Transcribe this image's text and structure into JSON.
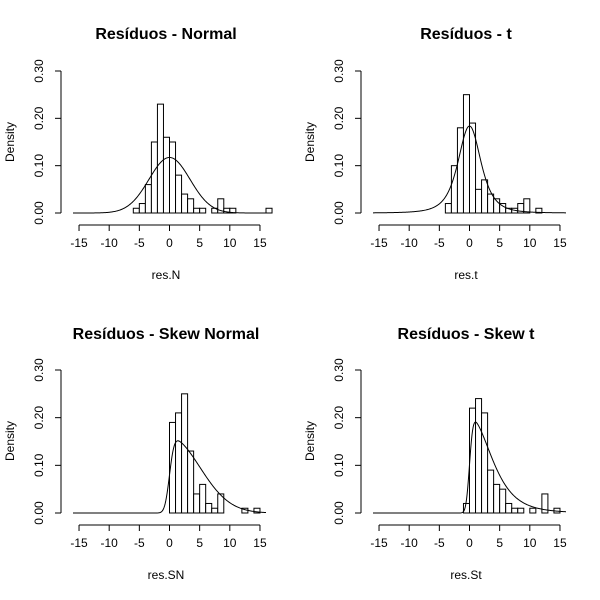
{
  "chart_data": [
    {
      "type": "histogram",
      "title": "Resíduos - Normal",
      "xlabel": "res.N",
      "ylabel": "Density",
      "xlim": [
        -16,
        16
      ],
      "ylim": [
        0,
        0.3
      ],
      "xticks": [
        -15,
        -10,
        -5,
        0,
        5,
        10,
        15
      ],
      "yticks": [
        0.0,
        0.1,
        0.2,
        0.3
      ],
      "ytick_labels": [
        "0.00",
        "0.10",
        "0.20",
        "0.30"
      ],
      "bin_width": 1,
      "bins": [
        {
          "x0": -6,
          "density": 0.01
        },
        {
          "x0": -5,
          "density": 0.02
        },
        {
          "x0": -4,
          "density": 0.06
        },
        {
          "x0": -3,
          "density": 0.15
        },
        {
          "x0": -2,
          "density": 0.23
        },
        {
          "x0": -1,
          "density": 0.16
        },
        {
          "x0": 0,
          "density": 0.15
        },
        {
          "x0": 1,
          "density": 0.08
        },
        {
          "x0": 2,
          "density": 0.04
        },
        {
          "x0": 3,
          "density": 0.03
        },
        {
          "x0": 4,
          "density": 0.01
        },
        {
          "x0": 5,
          "density": 0.01
        },
        {
          "x0": 6,
          "density": 0.0
        },
        {
          "x0": 7,
          "density": 0.01
        },
        {
          "x0": 8,
          "density": 0.03
        },
        {
          "x0": 9,
          "density": 0.01
        },
        {
          "x0": 10,
          "density": 0.01
        },
        {
          "x0": 16,
          "density": 0.01
        }
      ],
      "curve": {
        "dist": "normal",
        "mu": 0.0,
        "sigma": 3.4
      }
    },
    {
      "type": "histogram",
      "title": "Resíduos - t",
      "xlabel": "res.t",
      "ylabel": "Density",
      "xlim": [
        -16,
        16
      ],
      "ylim": [
        0,
        0.3
      ],
      "xticks": [
        -15,
        -10,
        -5,
        0,
        5,
        10,
        15
      ],
      "yticks": [
        0.0,
        0.1,
        0.2,
        0.3
      ],
      "ytick_labels": [
        "0.00",
        "0.10",
        "0.20",
        "0.30"
      ],
      "bin_width": 1,
      "bins": [
        {
          "x0": -4,
          "density": 0.02
        },
        {
          "x0": -3,
          "density": 0.1
        },
        {
          "x0": -2,
          "density": 0.18
        },
        {
          "x0": -1,
          "density": 0.25
        },
        {
          "x0": 0,
          "density": 0.19
        },
        {
          "x0": 1,
          "density": 0.05
        },
        {
          "x0": 2,
          "density": 0.07
        },
        {
          "x0": 3,
          "density": 0.04
        },
        {
          "x0": 4,
          "density": 0.03
        },
        {
          "x0": 5,
          "density": 0.02
        },
        {
          "x0": 6,
          "density": 0.01
        },
        {
          "x0": 7,
          "density": 0.01
        },
        {
          "x0": 8,
          "density": 0.02
        },
        {
          "x0": 9,
          "density": 0.03
        },
        {
          "x0": 10,
          "density": 0.0
        },
        {
          "x0": 11,
          "density": 0.01
        }
      ],
      "curve": {
        "dist": "t",
        "mu": 0.0,
        "sigma": 2.0,
        "nu": 3
      }
    },
    {
      "type": "histogram",
      "title": "Resíduos - Skew Normal",
      "xlabel": "res.SN",
      "ylabel": "Density",
      "xlim": [
        -16,
        16
      ],
      "ylim": [
        0,
        0.3
      ],
      "xticks": [
        -15,
        -10,
        -5,
        0,
        5,
        10,
        15
      ],
      "yticks": [
        0.0,
        0.1,
        0.2,
        0.3
      ],
      "ytick_labels": [
        "0.00",
        "0.10",
        "0.20",
        "0.30"
      ],
      "bin_width": 1,
      "bins": [
        {
          "x0": 0,
          "density": 0.19
        },
        {
          "x0": 1,
          "density": 0.21
        },
        {
          "x0": 2,
          "density": 0.25
        },
        {
          "x0": 3,
          "density": 0.13
        },
        {
          "x0": 4,
          "density": 0.04
        },
        {
          "x0": 5,
          "density": 0.06
        },
        {
          "x0": 6,
          "density": 0.02
        },
        {
          "x0": 7,
          "density": 0.01
        },
        {
          "x0": 8,
          "density": 0.04
        },
        {
          "x0": 9,
          "density": 0.0
        },
        {
          "x0": 10,
          "density": 0.0
        },
        {
          "x0": 11,
          "density": 0.0
        },
        {
          "x0": 12,
          "density": 0.01
        },
        {
          "x0": 13,
          "density": 0.0
        },
        {
          "x0": 14,
          "density": 0.01
        }
      ],
      "curve": {
        "dist": "skew-normal",
        "xi": 0.0,
        "omega": 5.0,
        "alpha": 8
      }
    },
    {
      "type": "histogram",
      "title": "Resíduos - Skew t",
      "xlabel": "res.St",
      "ylabel": "Density",
      "xlim": [
        -16,
        16
      ],
      "ylim": [
        0,
        0.3
      ],
      "xticks": [
        -15,
        -10,
        -5,
        0,
        5,
        10,
        15
      ],
      "yticks": [
        0.0,
        0.1,
        0.2,
        0.3
      ],
      "ytick_labels": [
        "0.00",
        "0.10",
        "0.20",
        "0.30"
      ],
      "bin_width": 1,
      "bins": [
        {
          "x0": -1,
          "density": 0.02
        },
        {
          "x0": 0,
          "density": 0.22
        },
        {
          "x0": 1,
          "density": 0.24
        },
        {
          "x0": 2,
          "density": 0.21
        },
        {
          "x0": 3,
          "density": 0.09
        },
        {
          "x0": 4,
          "density": 0.06
        },
        {
          "x0": 5,
          "density": 0.05
        },
        {
          "x0": 6,
          "density": 0.02
        },
        {
          "x0": 7,
          "density": 0.01
        },
        {
          "x0": 8,
          "density": 0.01
        },
        {
          "x0": 9,
          "density": 0.0
        },
        {
          "x0": 10,
          "density": 0.01
        },
        {
          "x0": 11,
          "density": 0.0
        },
        {
          "x0": 12,
          "density": 0.04
        },
        {
          "x0": 13,
          "density": 0.0
        },
        {
          "x0": 14,
          "density": 0.01
        }
      ],
      "curve": {
        "dist": "skew-t",
        "xi": 0.0,
        "omega": 3.7,
        "alpha": 8,
        "nu": 4
      }
    }
  ]
}
